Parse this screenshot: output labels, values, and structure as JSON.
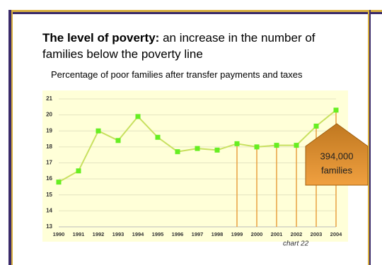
{
  "chart_data": {
    "type": "line",
    "title": "The level of poverty:",
    "title_continuation": "an increase in the number of families below the poverty line",
    "subtitle": "Percentage of poor families after transfer payments and taxes",
    "annotation": [
      "394,000",
      "families"
    ],
    "footnote": "chart 22",
    "categories": [
      "1990",
      "1991",
      "1992",
      "1993",
      "1994",
      "1995",
      "1996",
      "1997",
      "1998",
      "1999",
      "2000",
      "2001",
      "2002",
      "2003",
      "2004"
    ],
    "series": [
      {
        "name": "Poor families (%)",
        "color": "#c8e060",
        "marker_color": "#66ee22",
        "values": [
          15.8,
          16.5,
          19.0,
          18.4,
          19.9,
          18.6,
          17.7,
          17.9,
          17.8,
          18.2,
          18.0,
          18.1,
          18.1,
          19.3,
          20.3
        ]
      }
    ],
    "highlight_from": 9,
    "highlight_color": "#e8a040",
    "ylim": [
      13,
      21
    ],
    "yticks": [
      13,
      14,
      15,
      16,
      17,
      18,
      19,
      20,
      21
    ],
    "grid": true
  }
}
